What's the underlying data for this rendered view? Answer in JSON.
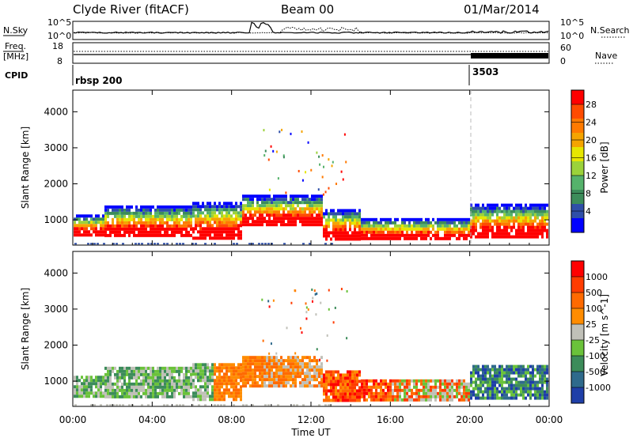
{
  "header": {
    "station": "Clyde River (fitACF)",
    "beam": "Beam 00",
    "date": "01/Mar/2014"
  },
  "summary_panels": {
    "nsky_label": "N.Sky",
    "nsky_ticks": [
      "10^5",
      "10^0"
    ],
    "nsearch_label": "N.Search",
    "nsearch_ticks": [
      "10^5",
      "10^0"
    ],
    "freq_label_1": "Freq.",
    "freq_label_2": "[MHz]",
    "freq_ticks": [
      "18",
      "8"
    ],
    "nave_label": "Nave",
    "nave_ticks": [
      "60",
      "0"
    ],
    "cpid_label": "CPID",
    "cpid_programs": [
      {
        "name": "rbsp 200",
        "start_hour": 0
      },
      {
        "name": "3503",
        "start_hour": 20.1
      }
    ]
  },
  "colors": {
    "power_scale": [
      "#0000ff",
      "#2f4fa8",
      "#3c8c5a",
      "#55b26b",
      "#9bd23a",
      "#e6e600",
      "#f5a400",
      "#ff7a00",
      "#ff4b00",
      "#ff0000"
    ],
    "velocity_scale": [
      "#1f3fa8",
      "#2f6a8c",
      "#3c8c5a",
      "#6ac23a",
      "#c0c0b8",
      "#ff8c00",
      "#ff6a00",
      "#ff3c00",
      "#ff0000"
    ]
  },
  "chart_data": [
    {
      "type": "heatmap",
      "name": "power",
      "ylabel": "Slant Range [km]",
      "xlabel": "Time UT",
      "x_ticks": [
        "00:00",
        "04:00",
        "08:00",
        "12:00",
        "16:00",
        "20:00",
        "00:00"
      ],
      "y_ticks": [
        "1000",
        "2000",
        "3000",
        "4000"
      ],
      "ylim": [
        300,
        4600
      ],
      "xlim_hours": [
        0,
        24
      ],
      "colorbar_label": "Power [dB]",
      "colorbar_ticks": [
        "28",
        "24",
        "20",
        "16",
        "12",
        "8",
        "4"
      ]
    },
    {
      "type": "heatmap",
      "name": "velocity",
      "ylabel": "Slant Range [km]",
      "xlabel": "Time UT",
      "x_ticks": [
        "00:00",
        "04:00",
        "08:00",
        "12:00",
        "16:00",
        "20:00",
        "00:00"
      ],
      "y_ticks": [
        "1000",
        "2000",
        "3000",
        "4000"
      ],
      "ylim": [
        300,
        4600
      ],
      "xlim_hours": [
        0,
        24
      ],
      "colorbar_label": "Velocity [m s^-1]",
      "colorbar_ticks": [
        "1000",
        "500",
        "100",
        "25",
        "-25",
        "-100",
        "-500",
        "-1000"
      ]
    }
  ]
}
